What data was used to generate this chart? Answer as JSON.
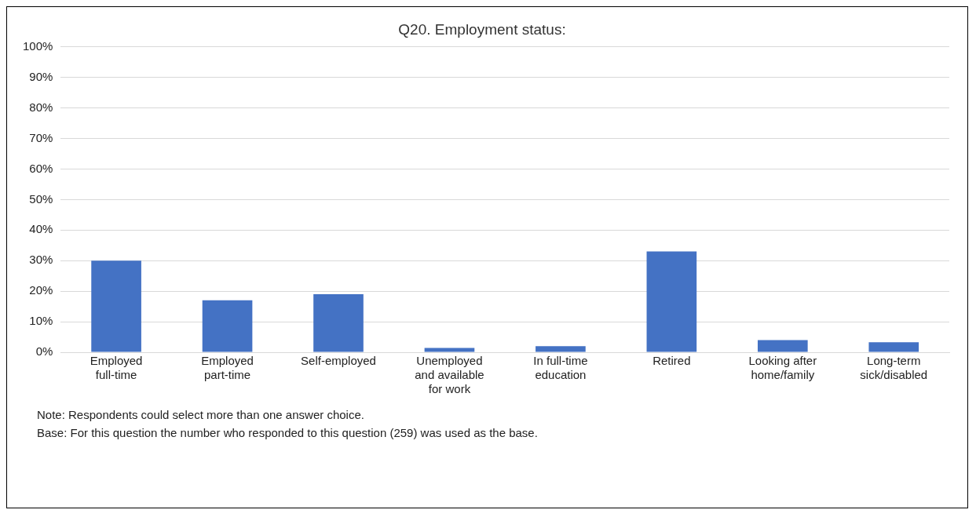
{
  "chart_data": {
    "type": "bar",
    "title": "Q20. Employment status:",
    "categories": [
      "Employed full-time",
      "Employed part-time",
      "Self-employed",
      "Unemployed and available for work",
      "In full-time education",
      "Retired",
      "Looking after home/family",
      "Long-term sick/disabled"
    ],
    "values": [
      30,
      17,
      19,
      1.4,
      2,
      33,
      4,
      3.3
    ],
    "color": "#4472c4",
    "ylim": [
      0,
      100
    ],
    "yticks": [
      {
        "value": 0,
        "label": "0%"
      },
      {
        "value": 10,
        "label": "10%"
      },
      {
        "value": 20,
        "label": "20%"
      },
      {
        "value": 30,
        "label": "30%"
      },
      {
        "value": 40,
        "label": "40%"
      },
      {
        "value": 50,
        "label": "50%"
      },
      {
        "value": 60,
        "label": "60%"
      },
      {
        "value": 70,
        "label": "70%"
      },
      {
        "value": 80,
        "label": "80%"
      },
      {
        "value": 90,
        "label": "90%"
      },
      {
        "value": 100,
        "label": "100%"
      }
    ],
    "grid": "y",
    "annotations": [
      "Note: Respondents could select more than one answer choice.",
      "Base: For this question the number who responded to this question (259) was used as the base."
    ]
  }
}
